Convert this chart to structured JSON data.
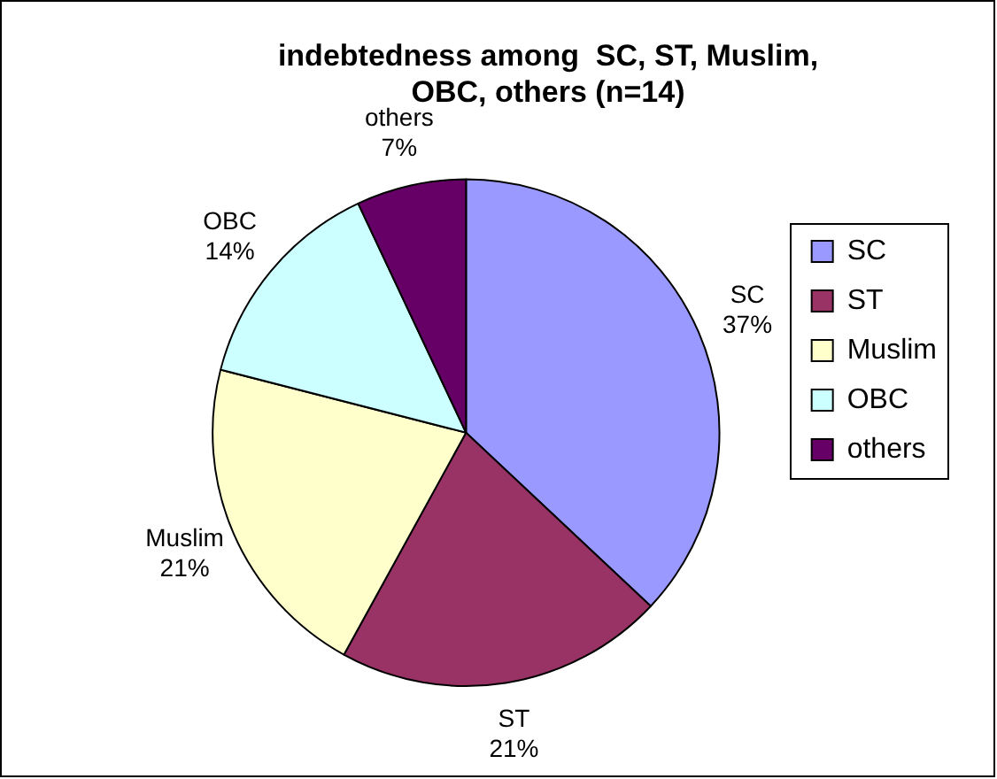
{
  "chart_data": {
    "type": "pie",
    "title": "indebtedness among  SC, ST, Muslim, OBC, others (n=14)",
    "categories": [
      "SC",
      "ST",
      "Muslim",
      "OBC",
      "others"
    ],
    "values": [
      37,
      21,
      21,
      14,
      7
    ],
    "value_labels": [
      "37%",
      "21%",
      "21%",
      "14%",
      "7%"
    ],
    "colors": [
      "#9999ff",
      "#993366",
      "#ffffcc",
      "#ccffff",
      "#660066"
    ],
    "legend": "right"
  }
}
